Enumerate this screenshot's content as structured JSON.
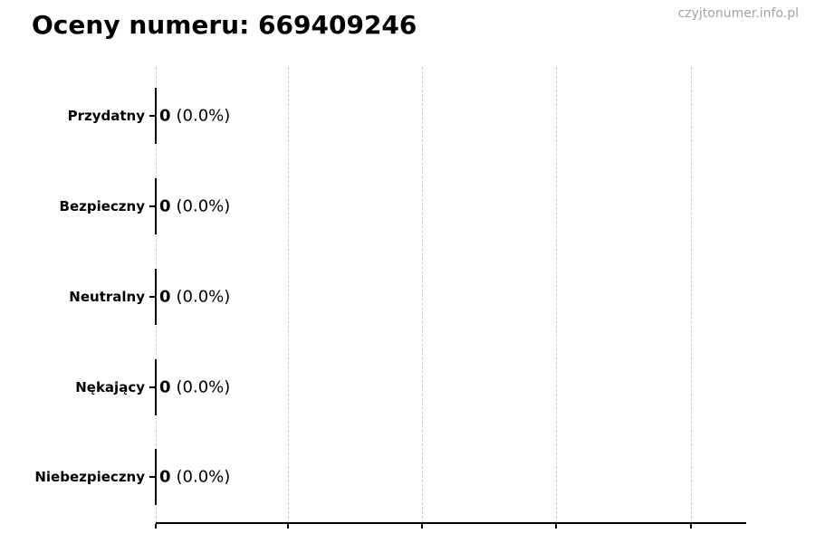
{
  "header": {
    "title": "Oceny numeru: 669409246",
    "watermark": "czyjtonumer.info.pl"
  },
  "chart_data": {
    "type": "bar",
    "orientation": "horizontal",
    "title": "Oceny numeru: 669409246",
    "categories": [
      "Przydatny",
      "Bezpieczny",
      "Neutralny",
      "Nękający",
      "Niebezpieczny"
    ],
    "values": [
      0,
      0,
      0,
      0,
      0
    ],
    "value_labels": [
      "0 (0.0%)",
      "0 (0.0%)",
      "0 (0.0%)",
      "0 (0.0%)",
      "0 (0.0%)"
    ],
    "rows": [
      {
        "label": "Przydatny",
        "value": "0",
        "pct": "(0.0%)"
      },
      {
        "label": "Bezpieczny",
        "value": "0",
        "pct": "(0.0%)"
      },
      {
        "label": "Neutralny",
        "value": "0",
        "pct": "(0.0%)"
      },
      {
        "label": "Nękający",
        "value": "0",
        "pct": "(0.0%)"
      },
      {
        "label": "Niebezpieczny",
        "value": "0",
        "pct": "(0.0%)"
      }
    ],
    "xlabel": "",
    "ylabel": "",
    "x_tick_labels_visible": false,
    "x_gridline_count": 5,
    "grid": "vertical-dashed",
    "legend": "none"
  },
  "colors": {
    "text": "#000000",
    "watermark": "#a3a3a3",
    "gridline": "#cccccc",
    "axis": "#000000",
    "background": "#ffffff"
  }
}
